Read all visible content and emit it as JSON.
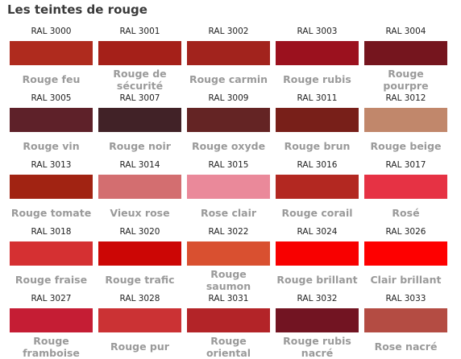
{
  "title": "Les teintes de rouge",
  "colors": [
    {
      "code": "RAL 3000",
      "name": "Rouge feu",
      "hex": "#af2b1e"
    },
    {
      "code": "RAL 3001",
      "name": "Rouge de\nsécurité",
      "hex": "#a52019"
    },
    {
      "code": "RAL 3002",
      "name": "Rouge carmin",
      "hex": "#a2231d"
    },
    {
      "code": "RAL 3003",
      "name": "Rouge rubis",
      "hex": "#9b111e"
    },
    {
      "code": "RAL 3004",
      "name": "Rouge\npourpre",
      "hex": "#75151e"
    },
    {
      "code": "RAL 3005",
      "name": "Rouge vin",
      "hex": "#5e2129"
    },
    {
      "code": "RAL 3007",
      "name": "Rouge noir",
      "hex": "#412227"
    },
    {
      "code": "RAL 3009",
      "name": "Rouge oxyde",
      "hex": "#642424"
    },
    {
      "code": "RAL 3011",
      "name": "Rouge brun",
      "hex": "#781f19"
    },
    {
      "code": "RAL 3012",
      "name": "Rouge beige",
      "hex": "#c1876b"
    },
    {
      "code": "RAL 3013",
      "name": "Rouge tomate",
      "hex": "#a12312"
    },
    {
      "code": "RAL 3014",
      "name": "Vieux rose",
      "hex": "#d36e70"
    },
    {
      "code": "RAL 3015",
      "name": "Rose clair",
      "hex": "#ea899a"
    },
    {
      "code": "RAL 3016",
      "name": "Rouge corail",
      "hex": "#b32821"
    },
    {
      "code": "RAL 3017",
      "name": "Rosé",
      "hex": "#e63244"
    },
    {
      "code": "RAL 3018",
      "name": "Rouge fraise",
      "hex": "#d53032"
    },
    {
      "code": "RAL 3020",
      "name": "Rouge trafic",
      "hex": "#cc0605"
    },
    {
      "code": "RAL 3022",
      "name": "Rouge\nsaumon",
      "hex": "#d95030"
    },
    {
      "code": "RAL 3024",
      "name": "Rouge brillant",
      "hex": "#f80000"
    },
    {
      "code": "RAL 3026",
      "name": "Clair brillant",
      "hex": "#fe0000"
    },
    {
      "code": "RAL 3027",
      "name": "Rouge\nframboise",
      "hex": "#c51d34"
    },
    {
      "code": "RAL 3028",
      "name": "Rouge pur",
      "hex": "#cb3234"
    },
    {
      "code": "RAL 3031",
      "name": "Rouge\noriental",
      "hex": "#b32428"
    },
    {
      "code": "RAL 3032",
      "name": "Rouge rubis\nnacré",
      "hex": "#721422"
    },
    {
      "code": "RAL 3033",
      "name": "Rose nacré",
      "hex": "#b44c43"
    }
  ]
}
